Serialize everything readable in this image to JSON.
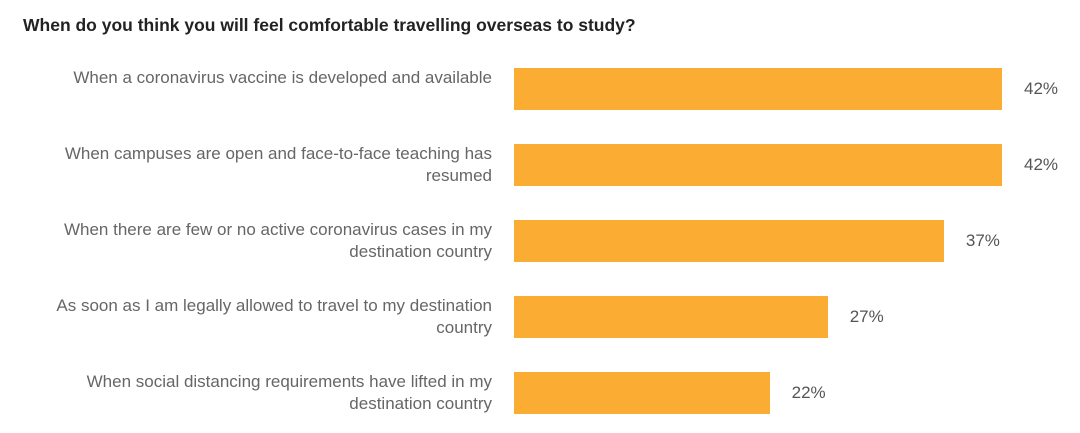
{
  "chart_data": {
    "type": "bar",
    "orientation": "horizontal",
    "title": "When do you think you will feel comfortable travelling overseas to study?",
    "categories": [
      "When a coronavirus vaccine is developed and available",
      "When campuses are open and face-to-face teaching has resumed",
      "When there are few or no active coronavirus cases in my destination country",
      "As soon as I am legally allowed to travel to my destination country",
      "When social distancing requirements have lifted in my destination country"
    ],
    "values": [
      42,
      42,
      37,
      27,
      22
    ],
    "value_labels": [
      "42%",
      "42%",
      "37%",
      "27%",
      "22%"
    ],
    "unit": "%",
    "xlim": [
      0,
      42
    ],
    "grid": false,
    "bar_color": "#FBAD33"
  }
}
